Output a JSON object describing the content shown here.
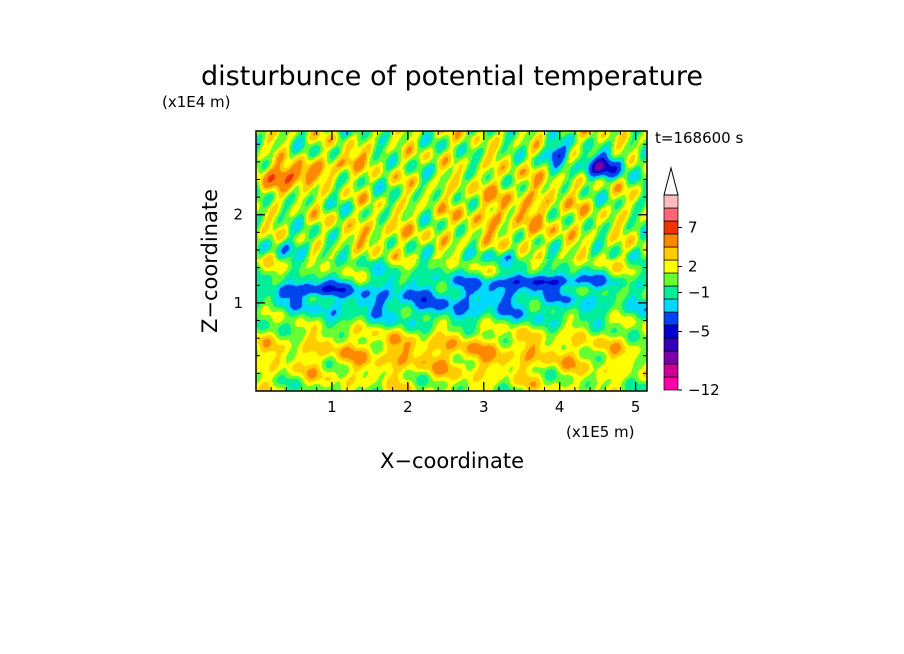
{
  "chart_data": {
    "type": "heatmap",
    "title": "disturbunce of potential temperature",
    "time_label": "t=168600 s",
    "xlabel": "X−coordinate",
    "ylabel": "Z−coordinate",
    "x_unit": "(x1E5 m)",
    "y_unit": "(x1E4 m)",
    "xlim": [
      0,
      5.15
    ],
    "ylim": [
      0,
      2.95
    ],
    "x_ticks": [
      1,
      2,
      3,
      4,
      5
    ],
    "y_ticks": [
      1,
      2
    ],
    "colorbar": {
      "extend": "max",
      "tick_labels": [
        {
          "value": 7,
          "label": "7"
        },
        {
          "value": 2,
          "label": "2"
        },
        {
          "value": -1,
          "label": "−1"
        },
        {
          "value": -5,
          "label": "−5"
        },
        {
          "value": -12,
          "label": "−12"
        }
      ],
      "colors": [
        "#ff00aa",
        "#cc0099",
        "#7a00aa",
        "#3300bb",
        "#0000cc",
        "#0044ee",
        "#00d8ff",
        "#00ee99",
        "#66ff33",
        "#ffff00",
        "#ffcc00",
        "#ff8800",
        "#ee3300",
        "#ff6677",
        "#ffbbbb"
      ]
    },
    "features": [
      {
        "name": "warm",
        "x": 0.45,
        "z": 2.45,
        "sx": 0.34,
        "sz": 0.12,
        "value": 5
      },
      {
        "name": "warm",
        "x": 1.2,
        "z": 2.6,
        "sx": 0.22,
        "sz": 0.1,
        "value": 3
      },
      {
        "name": "cool",
        "x": 4.55,
        "z": 2.55,
        "sx": 0.28,
        "sz": 0.12,
        "value": -6
      },
      {
        "name": "cool",
        "x": 3.95,
        "z": 2.7,
        "sx": 0.16,
        "sz": 0.1,
        "value": -5
      },
      {
        "name": "cool",
        "x": 2.5,
        "z": 1.03,
        "sx": 2.6,
        "sz": 0.3,
        "value": -2.8
      },
      {
        "name": "cool",
        "x": 3.8,
        "z": 1.25,
        "sx": 0.7,
        "sz": 0.07,
        "value": -4
      },
      {
        "name": "cool",
        "x": 0.7,
        "z": 1.15,
        "sx": 0.45,
        "sz": 0.07,
        "value": -4
      },
      {
        "name": "warm",
        "x": 2.5,
        "z": 0.45,
        "sx": 2.6,
        "sz": 0.3,
        "value": 1.8
      },
      {
        "name": "warm",
        "x": 3.4,
        "z": 2.05,
        "sx": 0.8,
        "sz": 0.4,
        "value": 1.6
      },
      {
        "name": "warm",
        "x": 1.6,
        "z": 1.8,
        "sx": 0.5,
        "sz": 0.15,
        "value": 1.2
      },
      {
        "name": "cool",
        "x": 0.5,
        "z": 1.65,
        "sx": 0.35,
        "sz": 0.1,
        "value": -1.6
      },
      {
        "name": "cool",
        "x": 3.3,
        "z": 1.55,
        "sx": 0.5,
        "sz": 0.08,
        "value": -1.4
      }
    ]
  }
}
